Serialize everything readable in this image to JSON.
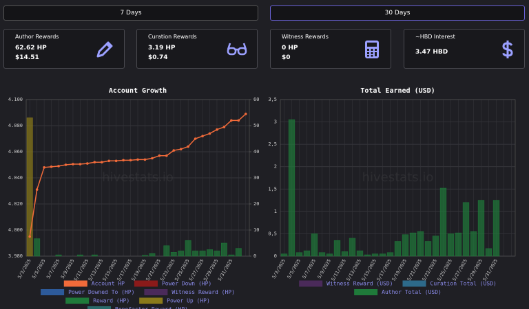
{
  "buttons": [
    "7 Days",
    "30 Days"
  ],
  "selected_button": 1,
  "cards": [
    {
      "title": "Author Rewards",
      "lines": [
        "62.62 HP",
        "$14.51"
      ]
    },
    {
      "title": "Curation Rewards",
      "lines": [
        "3.19 HP",
        "$0.74"
      ]
    },
    {
      "title": "Witness Rewards",
      "lines": [
        "0 HP",
        "$0"
      ]
    },
    {
      "title": "~HBD Interest",
      "lines": [
        "3.47 HBD"
      ]
    }
  ],
  "chart_data": [
    {
      "type": "combo",
      "title": "Account Growth",
      "watermark": "hivestats.io",
      "categories": [
        "5/3/2025",
        null,
        "5/5/2025",
        null,
        "5/7/2025",
        null,
        "5/9/2025",
        null,
        "5/11/2025",
        null,
        "5/13/2025",
        null,
        "5/15/2025",
        null,
        "5/17/2025",
        null,
        "5/19/2025",
        null,
        "5/21/2025",
        null,
        "5/23/2025",
        null,
        "5/25/2025",
        null,
        "5/27/2025",
        null,
        "5/29/2025",
        null,
        "5/31/2025",
        null,
        null
      ],
      "ylim": [
        3.98,
        4.1
      ],
      "yticks": [
        {
          "value": 3.98,
          "label": "3.980"
        },
        {
          "value": 4,
          "label": "4.000"
        },
        {
          "value": 4.02,
          "label": "4.020"
        },
        {
          "value": 4.04,
          "label": "4.040"
        },
        {
          "value": 4.06,
          "label": "4.060"
        },
        {
          "value": 4.08,
          "label": "4.080"
        },
        {
          "value": 4.1,
          "label": "4.100"
        }
      ],
      "y2lim": [
        0,
        60
      ],
      "y2ticks": [
        0,
        10,
        20,
        30,
        40,
        50,
        60
      ],
      "grid": true,
      "series": [
        {
          "name": "Account HP",
          "type": "line",
          "color": "#f26b3a",
          "values": [
            3.995,
            4.031,
            4.048,
            4.0485,
            4.049,
            4.05,
            4.0505,
            4.0505,
            4.051,
            4.052,
            4.052,
            4.053,
            4.053,
            4.0535,
            4.0535,
            4.054,
            4.054,
            4.055,
            4.057,
            4.057,
            4.061,
            4.062,
            4.064,
            4.07,
            4.072,
            4.074,
            4.077,
            4.079,
            4.084,
            4.084,
            4.089
          ]
        },
        {
          "name": "Power Down (HP)",
          "type": "bar",
          "axis": "y2",
          "color": "#8b1a1a",
          "values": [
            0,
            0,
            0,
            0,
            0,
            0,
            0,
            0,
            0,
            0,
            0,
            0,
            0,
            0,
            0,
            0,
            0,
            0,
            0,
            0,
            0,
            0,
            0,
            0,
            0,
            0,
            0,
            0,
            0,
            0,
            0
          ]
        },
        {
          "name": "Power Downed To (HP)",
          "type": "bar",
          "axis": "y2",
          "color": "#2d5a9a",
          "values": [
            0,
            0,
            0,
            0,
            0,
            0,
            0,
            0,
            0,
            0,
            0,
            0,
            0,
            0,
            0,
            0,
            0,
            0,
            0,
            0,
            0,
            0,
            0,
            0,
            0,
            0,
            0,
            0,
            0,
            0,
            0
          ]
        },
        {
          "name": "Witness Reward (HP)",
          "type": "bar",
          "axis": "y2",
          "color": "#4a2a5a",
          "values": [
            0,
            0,
            0,
            0,
            0,
            0,
            0,
            0,
            0,
            0,
            0,
            0,
            0,
            0,
            0,
            0,
            0,
            0,
            0,
            0,
            0,
            0,
            0,
            0,
            0,
            0,
            0,
            0,
            0,
            0,
            0
          ]
        },
        {
          "name": "Reward (HP)",
          "type": "bar",
          "axis": "y2",
          "color": "#1f7a3a",
          "values": [
            0,
            6.7,
            0,
            0,
            0.5,
            0,
            0,
            0.5,
            0,
            0.5,
            0,
            0,
            0,
            0,
            0,
            0,
            0.3,
            1,
            0,
            4,
            1.5,
            2,
            6,
            2,
            2,
            2.5,
            2,
            5,
            0.5,
            3,
            0
          ]
        },
        {
          "name": "Power Up (HP)",
          "type": "bar",
          "axis": "y2",
          "color": "#8a7a1a",
          "values": [
            53,
            0,
            0,
            0,
            0,
            0,
            0,
            0,
            0,
            0,
            0,
            0,
            0,
            0,
            0,
            0,
            0,
            0,
            0,
            0,
            0,
            0,
            0,
            0,
            0,
            0,
            0,
            0,
            0,
            0,
            0
          ]
        },
        {
          "name": "Benefactor Reward (HP)",
          "type": "bar",
          "axis": "y2",
          "color": "#2a6a6a",
          "values": [
            0,
            0,
            0,
            0,
            0,
            0,
            0,
            0,
            0,
            0,
            0,
            0,
            0,
            0,
            0,
            0,
            0,
            0,
            0,
            0,
            0,
            0,
            0,
            0,
            0,
            0,
            0,
            0,
            0,
            0,
            0
          ]
        }
      ]
    },
    {
      "type": "bar",
      "title": "Total Earned (USD)",
      "watermark": "hivestats.io",
      "categories": [
        "5/3/2025",
        null,
        "5/5/2025",
        null,
        "5/7/2025",
        null,
        "5/9/2025",
        null,
        "5/11/2025",
        null,
        "5/13/2025",
        null,
        "5/15/2025",
        null,
        "5/17/2025",
        null,
        "5/19/2025",
        null,
        "5/21/2025",
        null,
        "5/23/2025",
        null,
        "5/25/2025",
        null,
        "5/27/2025",
        null,
        "5/29/2025",
        null,
        "5/31/2025",
        null,
        null
      ],
      "ylim": [
        0,
        3.5
      ],
      "yticks": [
        0,
        {
          "value": 0.5,
          "label": "0,5"
        },
        1,
        {
          "value": 1.5,
          "label": "1,5"
        },
        2,
        {
          "value": 2.5,
          "label": "2,5"
        },
        3,
        {
          "value": 3.5,
          "label": "3,5"
        }
      ],
      "grid": true,
      "series": [
        {
          "name": "Witness Reward (USD)",
          "type": "bar",
          "color": "#4a2a5a",
          "values": [
            0,
            0,
            0,
            0,
            0,
            0,
            0,
            0,
            0,
            0,
            0,
            0,
            0,
            0,
            0,
            0,
            0,
            0,
            0,
            0,
            0,
            0,
            0,
            0,
            0,
            0,
            0,
            0,
            0,
            0,
            0
          ]
        },
        {
          "name": "Curation Total (USD)",
          "type": "bar",
          "color": "#2d6a8a",
          "values": [
            0,
            0,
            0,
            0,
            0,
            0,
            0,
            0,
            0,
            0,
            0,
            0,
            0,
            0,
            0,
            0,
            0,
            0,
            0,
            0,
            0,
            0,
            0,
            0,
            0,
            0,
            0,
            0,
            0,
            0,
            0
          ]
        },
        {
          "name": "Author Total (USD)",
          "type": "bar",
          "color": "#1f7a3a",
          "values": [
            0.05,
            3.05,
            0.08,
            0.12,
            0.5,
            0.08,
            0.05,
            0.35,
            0.1,
            0.4,
            0.12,
            0.03,
            0.05,
            0.05,
            0.08,
            0.33,
            0.48,
            0.52,
            0.55,
            0.33,
            0.45,
            1.52,
            0.5,
            0.52,
            1.2,
            0.55,
            1.25,
            0.17,
            1.25,
            0,
            0
          ]
        }
      ]
    }
  ]
}
